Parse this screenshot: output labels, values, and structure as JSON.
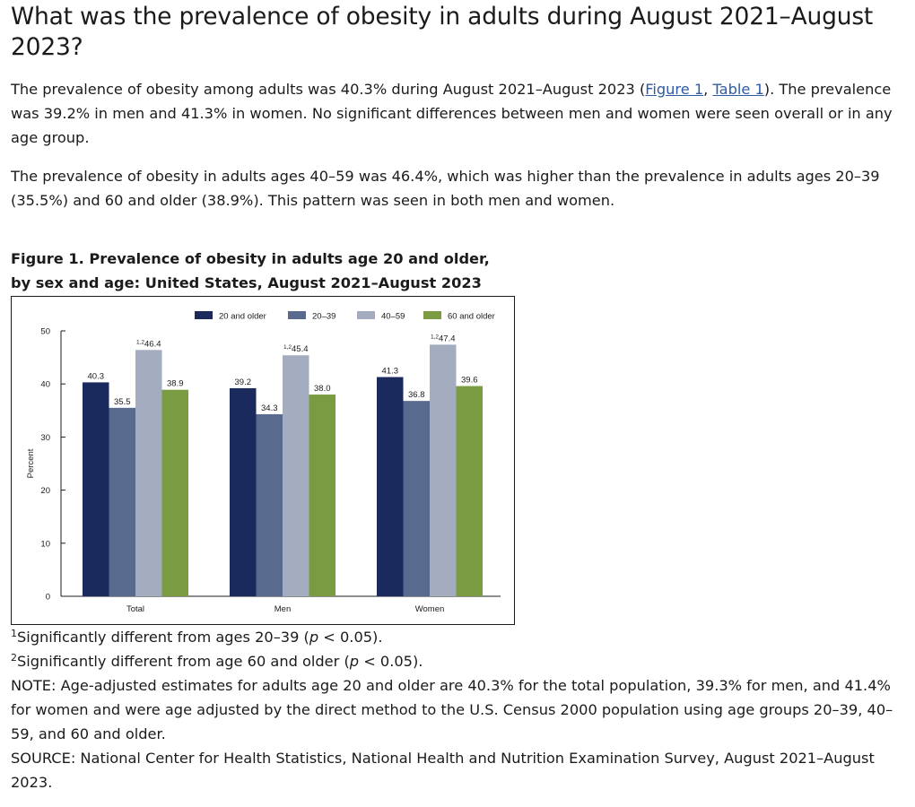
{
  "heading": "What was the prevalence of obesity in adults during August 2021–August 2023?",
  "para1": {
    "before": "The prevalence of obesity among adults was 40.3% during August 2021–August 2023 (",
    "link1": "Figure 1",
    "sep": ", ",
    "link2": "Table 1",
    "after": "). The prevalence was 39.2% in men and 41.3% in women. No significant differences between men and women were seen overall or in any age group."
  },
  "para2": "The prevalence of obesity in adults ages 40–59 was 46.4%, which was higher than the prevalence in adults ages 20–39 (35.5%) and 60 and older (38.9%). This pattern was seen in both men and women.",
  "figure_title": "Figure 1. Prevalence of obesity in adults age 20 and older, by sex and age: United States, August 2021–August 2023",
  "chart_data": {
    "type": "bar",
    "title": "Figure 1. Prevalence of obesity in adults age 20 and older, by sex and age: United States, August 2021–August 2023",
    "categories": [
      "Total",
      "Men",
      "Women"
    ],
    "series": [
      {
        "name": "20 and older",
        "color": "#1b2a5c",
        "values": [
          40.3,
          39.2,
          41.3
        ],
        "labels": [
          "40.3",
          "39.2",
          "41.3"
        ],
        "marks": [
          "",
          "",
          ""
        ]
      },
      {
        "name": "20–39",
        "color": "#586a8e",
        "values": [
          35.5,
          34.3,
          36.8
        ],
        "labels": [
          "35.5",
          "34.3",
          "36.8"
        ],
        "marks": [
          "",
          "",
          ""
        ]
      },
      {
        "name": "40–59",
        "color": "#a3adbf",
        "values": [
          46.4,
          45.4,
          47.4
        ],
        "labels": [
          "46.4",
          "45.4",
          "47.4"
        ],
        "marks": [
          "1,2",
          "1,2",
          "1,2"
        ]
      },
      {
        "name": "60 and older",
        "color": "#7a9b41",
        "values": [
          38.9,
          38.0,
          39.6
        ],
        "labels": [
          "38.9",
          "38.0",
          "39.6"
        ],
        "marks": [
          "",
          "",
          ""
        ]
      }
    ],
    "xlabel": "",
    "ylabel": "Percent",
    "ylim": [
      0,
      50
    ],
    "yticks": [
      "0",
      "10",
      "20",
      "30",
      "40",
      "50"
    ],
    "legend": "top-right"
  },
  "notes": {
    "n1_sup": "1",
    "n1_a": "Significantly different from ages 20–39 (",
    "n1_p": "p",
    "n1_b": " < 0.05).",
    "n2_sup": "2",
    "n2_a": "Significantly different from age 60 and older (",
    "n2_p": "p",
    "n2_b": " < 0.05).",
    "note": "NOTE: Age-adjusted estimates for adults age 20 and older are 40.3% for the total population, 39.3% for men, and 41.4% for women and were age adjusted by the direct method to the U.S. Census 2000 population using age groups 20–39, 40–59, and 60 and older.",
    "source": "SOURCE: National Center for Health Statistics, National Health and Nutrition Examination Survey, August 2021–August 2023."
  }
}
